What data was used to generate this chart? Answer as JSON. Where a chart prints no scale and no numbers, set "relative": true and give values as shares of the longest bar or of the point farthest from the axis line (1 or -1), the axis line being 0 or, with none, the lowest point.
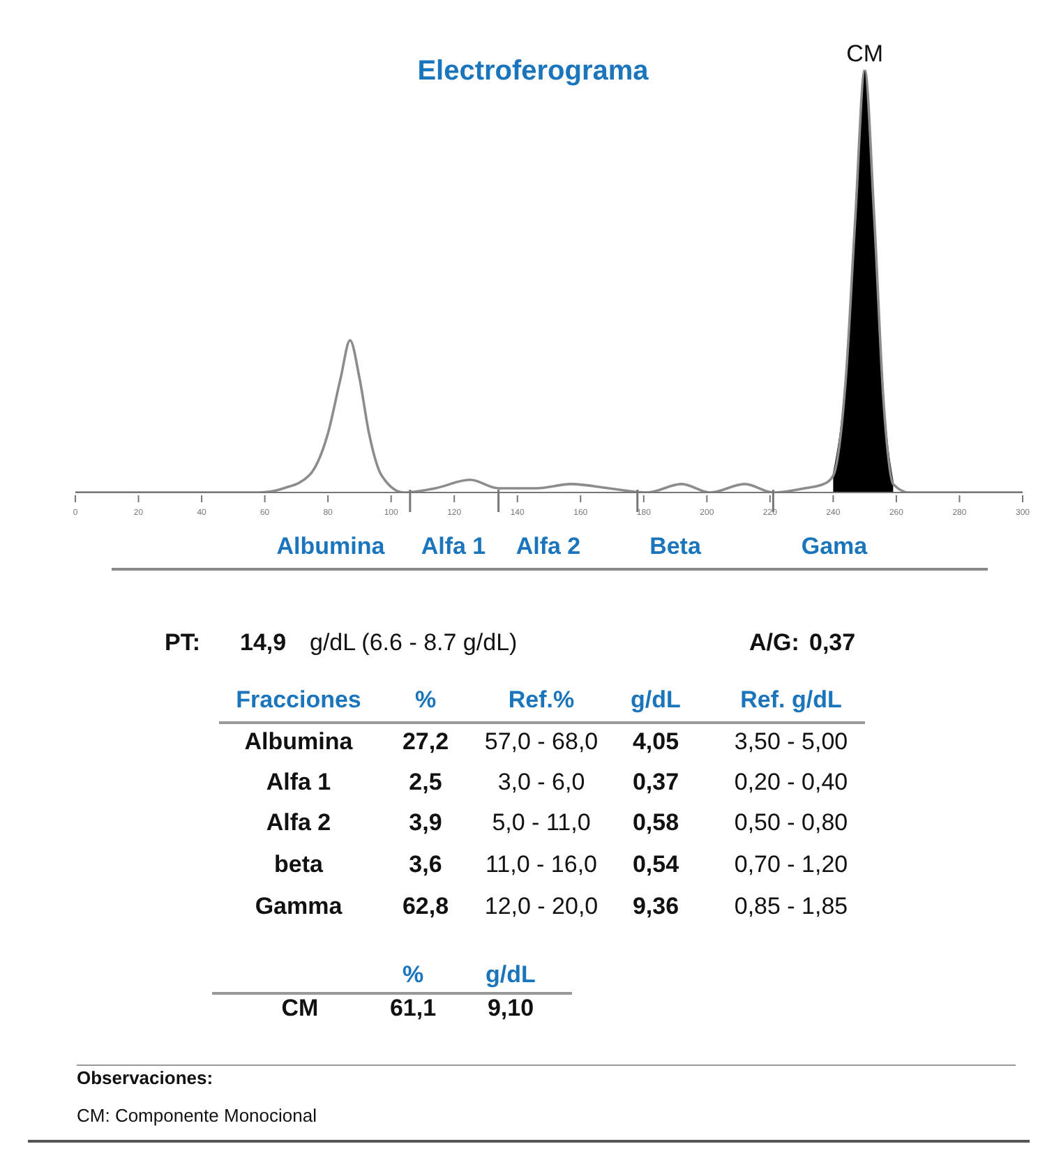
{
  "chart_data": {
    "type": "line",
    "title": "Electroferograma",
    "relative": true,
    "x": [
      0,
      58,
      66,
      74,
      80,
      84,
      87,
      90,
      93,
      97,
      104,
      114,
      125,
      134,
      146,
      157,
      169,
      181,
      192,
      201,
      212,
      221,
      231,
      237,
      240,
      244,
      247,
      250,
      253,
      256,
      259,
      264,
      300
    ],
    "series": [
      {
        "color": "#8c8c8c",
        "values": [
          0,
          0,
          0.01,
          0.04,
          0.14,
          0.27,
          0.36,
          0.27,
          0.14,
          0.04,
          0,
          0.01,
          0.03,
          0.01,
          0.01,
          0.02,
          0.01,
          0,
          0.02,
          0,
          0.02,
          0,
          0.01,
          0.02,
          0.04,
          0.27,
          0.65,
          1,
          0.65,
          0.21,
          0.02,
          0,
          0
        ]
      },
      {
        "type": "area",
        "color": "#000000",
        "values": [
          null,
          null,
          null,
          null,
          null,
          null,
          null,
          null,
          null,
          null,
          null,
          null,
          null,
          null,
          null,
          null,
          null,
          null,
          null,
          null,
          null,
          null,
          null,
          null,
          0.04,
          0.27,
          0.65,
          1,
          0.65,
          0.21,
          0.02,
          null,
          null
        ]
      }
    ],
    "xlim": [
      0,
      300
    ],
    "xticks": [
      0,
      20,
      40,
      60,
      80,
      100,
      {
        "value": 106,
        "label": null
      },
      120,
      {
        "value": 134,
        "label": null
      },
      140,
      160,
      {
        "value": 178,
        "label": null
      },
      180,
      200,
      {
        "value": 221,
        "label": null
      },
      220,
      240,
      260,
      280,
      300
    ],
    "legend": false,
    "grid": false,
    "marker": "none",
    "line_style": "solid",
    "annotations": [
      {
        "text": "CM",
        "x": 250,
        "y": 1
      },
      "Albumina",
      "Alfa 1",
      "Alfa 2",
      "Beta",
      "Gama",
      "PT:",
      "14,9",
      "g/dL (6.6 - 8.7 g/dL)",
      "A/G:",
      "0,37",
      "Fracciones",
      "%",
      "Ref.%",
      "g/dL",
      "Ref. g/dL",
      "Albumina",
      "27,2",
      "57,0 - 68,0",
      "4,05",
      "3,50 - 5,00",
      "Alfa 1",
      "2,5",
      "3,0 - 6,0",
      "0,37",
      "0,20 - 0,40",
      "Alfa 2",
      "3,9",
      "5,0 - 11,0",
      "0,58",
      "0,50 - 0,80",
      "beta",
      "3,6",
      "11,0 - 16,0",
      "0,54",
      "0,70 - 1,20",
      "Gamma",
      "62,8",
      "12,0 - 20,0",
      "9,36",
      "0,85 - 1,85",
      "%",
      "g/dL",
      "CM",
      "61,1",
      "9,10",
      "Observaciones:",
      "CM: Componente Monocional"
    ]
  }
}
